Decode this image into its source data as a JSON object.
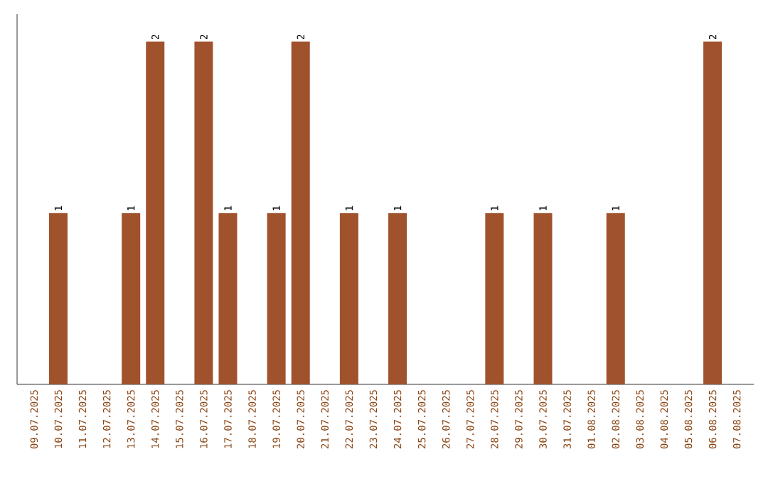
{
  "chart_data": {
    "type": "bar",
    "categories": [
      "09.07.2025",
      "10.07.2025",
      "11.07.2025",
      "12.07.2025",
      "13.07.2025",
      "14.07.2025",
      "15.07.2025",
      "16.07.2025",
      "17.07.2025",
      "18.07.2025",
      "19.07.2025",
      "20.07.2025",
      "21.07.2025",
      "22.07.2025",
      "23.07.2025",
      "24.07.2025",
      "25.07.2025",
      "26.07.2025",
      "27.07.2025",
      "28.07.2025",
      "29.07.2025",
      "30.07.2025",
      "31.07.2025",
      "01.08.2025",
      "02.08.2025",
      "03.08.2025",
      "04.08.2025",
      "05.08.2025",
      "06.08.2025",
      "07.08.2025"
    ],
    "values": [
      0,
      1,
      0,
      0,
      1,
      2,
      0,
      2,
      1,
      0,
      1,
      2,
      0,
      1,
      0,
      1,
      0,
      0,
      0,
      1,
      0,
      1,
      0,
      0,
      1,
      0,
      0,
      0,
      2,
      0
    ],
    "value_labels": [
      null,
      "1",
      null,
      null,
      "1",
      "2",
      null,
      "2",
      "1",
      null,
      "1",
      "2",
      null,
      "1",
      null,
      "1",
      null,
      null,
      null,
      "1",
      null,
      "1",
      null,
      null,
      "1",
      null,
      null,
      null,
      "2",
      null
    ],
    "color": "#a0522d",
    "grid": false
  }
}
